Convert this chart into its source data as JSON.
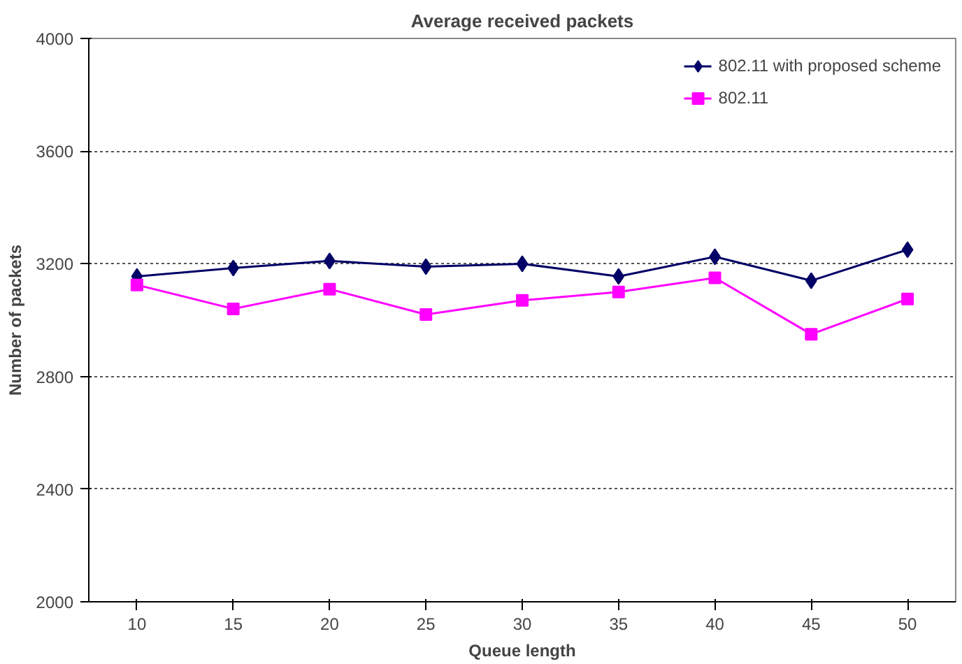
{
  "chart_data": {
    "type": "line",
    "title": "Average received packets",
    "xlabel": "Queue length",
    "ylabel": "Number of packets",
    "categories": [
      "10",
      "15",
      "20",
      "25",
      "30",
      "35",
      "40",
      "45",
      "50"
    ],
    "series": [
      {
        "name": "802.11 with proposed scheme",
        "color": "#000066",
        "marker": "diamond",
        "values": [
          3155,
          3185,
          3210,
          3190,
          3200,
          3155,
          3225,
          3140,
          3250
        ]
      },
      {
        "name": "802.11",
        "color": "#ff00ff",
        "marker": "square",
        "values": [
          3125,
          3040,
          3110,
          3020,
          3070,
          3100,
          3150,
          2950,
          3075
        ]
      }
    ],
    "ylim": [
      2000,
      4000
    ],
    "yticks": [
      2000,
      2400,
      2800,
      3200,
      3600,
      4000
    ],
    "grid": "y",
    "legend": "top right",
    "line_style": "solid"
  }
}
